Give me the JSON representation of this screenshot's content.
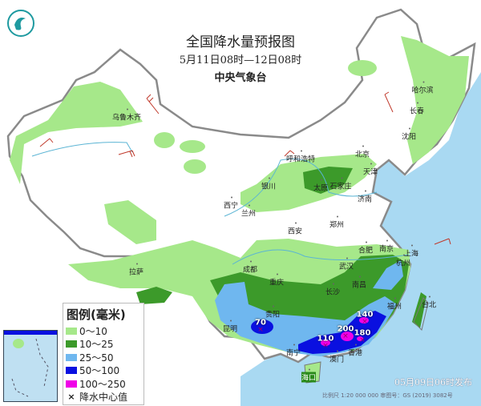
{
  "header": {
    "title": "全国降水量预报图",
    "period": "5月11日08时—12日08时",
    "issuer": "中央气象台"
  },
  "legend": {
    "title": "图例(毫米)",
    "items": [
      {
        "label": "0～10",
        "color": "#a6e88a"
      },
      {
        "label": "10～25",
        "color": "#3c9a2a"
      },
      {
        "label": "25～50",
        "color": "#6fb7ef"
      },
      {
        "label": "50～100",
        "color": "#0a10e0"
      },
      {
        "label": "100～250",
        "color": "#f000e8"
      }
    ],
    "center_marker": "降水中心值"
  },
  "cities": [
    "乌鲁木齐",
    "呼和浩特",
    "北京",
    "天津",
    "太原",
    "石家庄",
    "银川",
    "西宁",
    "兰州",
    "济南",
    "西安",
    "郑州",
    "拉萨",
    "成都",
    "重庆",
    "武汉",
    "合肥",
    "南京",
    "上海",
    "杭州",
    "南昌",
    "长沙",
    "贵阳",
    "昆明",
    "南宁",
    "澳门",
    "香港",
    "福州",
    "台北",
    "海口",
    "沈阳",
    "长春",
    "哈尔滨"
  ],
  "precip_centers": [
    "70",
    "110",
    "200",
    "180",
    "140"
  ],
  "footer": {
    "issued": "05月09日06时发布",
    "scale": "比例尺 1:20 000 000    审图号：GS (2019) 3082号"
  },
  "colors": {
    "sea": "#a9d9f2",
    "land": "#ffffff",
    "border": "#8a8a8a"
  }
}
